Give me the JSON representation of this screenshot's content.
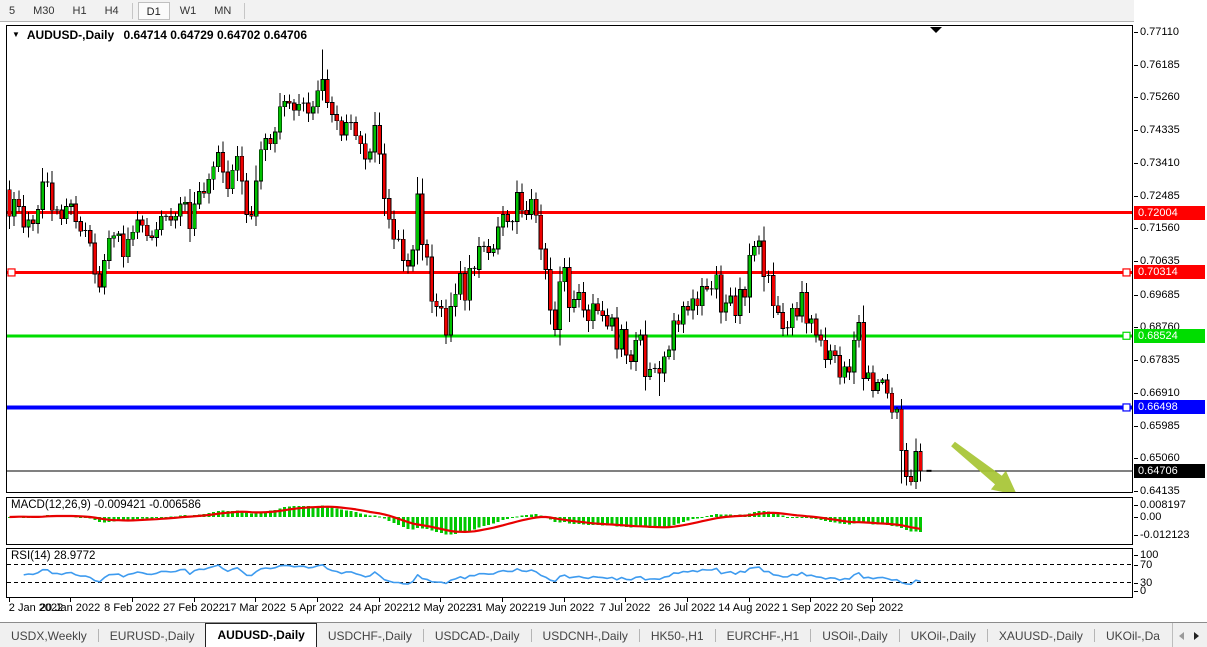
{
  "toolbar": {
    "items": [
      {
        "label": "5"
      },
      {
        "label": "M30"
      },
      {
        "label": "H1"
      },
      {
        "label": "H4"
      },
      {
        "sep": true
      },
      {
        "label": "D1",
        "active": true
      },
      {
        "label": "W1"
      },
      {
        "label": "MN"
      },
      {
        "sep": true
      }
    ]
  },
  "chart": {
    "title_symbol": "AUDUSD-,Daily",
    "title_ohlc": "0.64714 0.64729 0.64702 0.64706"
  },
  "price_axis": {
    "labels": [
      "0.77110",
      "0.76185",
      "0.75260",
      "0.74335",
      "0.73410",
      "0.72485",
      "0.71560",
      "0.70635",
      "0.69685",
      "0.68760",
      "0.67835",
      "0.66910",
      "0.65985",
      "0.65060",
      "0.64135"
    ]
  },
  "hlines": [
    {
      "price": 0.72004,
      "badge": "0.72004",
      "color": "#ff0000",
      "thickness": 3,
      "handles": []
    },
    {
      "price": 0.70314,
      "badge": "0.70314",
      "color": "#ff0000",
      "thickness": 3,
      "handles": [
        "left",
        "right"
      ]
    },
    {
      "price": 0.68524,
      "badge": "0.68524",
      "color": "#00dd00",
      "thickness": 3,
      "handles": [
        "right"
      ]
    },
    {
      "price": 0.66498,
      "badge": "0.66498",
      "color": "#0000ff",
      "thickness": 4,
      "handles": [
        "right"
      ]
    }
  ],
  "price_line": {
    "price": 0.64706,
    "badge": "0.64706",
    "color": "#000000"
  },
  "macd": {
    "label": "MACD(12,26,9) -0.009421 -0.006586",
    "params": [
      12,
      26,
      9
    ],
    "value_main": -0.009421,
    "value_signal": -0.006586,
    "axis_labels": [
      "0.008197",
      "0.00",
      "-0.012123"
    ],
    "axis_values": [
      0.008197,
      0,
      -0.012123
    ],
    "histogram_color": "#00c800",
    "signal_color": "#e80000"
  },
  "rsi": {
    "label": "RSI(14) 28.9772",
    "period": 14,
    "value": 28.9772,
    "axis_labels": [
      "100",
      "70",
      "30",
      "0"
    ],
    "axis_values": [
      100,
      70,
      30,
      0
    ],
    "levels": [
      70,
      30
    ],
    "line_color": "#3e9bef"
  },
  "x_axis": {
    "dates": [
      "2 Jan 2022",
      "20 Jan 2022",
      "8 Feb 2022",
      "27 Feb 2022",
      "17 Mar 2022",
      "5 Apr 2022",
      "24 Apr 2022",
      "12 May 2022",
      "31 May 2022",
      "19 Jun 2022",
      "7 Jul 2022",
      "26 Jul 2022",
      "14 Aug 2022",
      "1 Sep 2022",
      "20 Sep 2022"
    ]
  },
  "tabs": {
    "items": [
      "USDX,Weekly",
      "EURUSD-,Daily",
      "AUDUSD-,Daily",
      "USDCHF-,Daily",
      "USDCAD-,Daily",
      "USDCNH-,Daily",
      "HK50-,H1",
      "EURCHF-,H1",
      "USOil-,Daily",
      "UKOil-,Daily",
      "XAUUSD-,Daily",
      "UKOil-,Da"
    ],
    "active": "AUDUSD-,Daily"
  },
  "chart_data": {
    "type": "candlestick",
    "symbol": "AUDUSD-",
    "timeframe": "Daily",
    "current_bar": {
      "open": 0.64714,
      "high": 0.64729,
      "low": 0.64702,
      "close": 0.64706
    },
    "ylim": [
      0.64135,
      0.7711
    ],
    "first_open": 0.7265,
    "bull_color": "#00c000",
    "bear_color": "#ee0000",
    "outline_color": "#000000",
    "closes": [
      0.719,
      0.7238,
      0.7218,
      0.716,
      0.718,
      0.717,
      0.7209,
      0.7287,
      0.7284,
      0.7207,
      0.7208,
      0.7183,
      0.7218,
      0.7225,
      0.7175,
      0.7148,
      0.715,
      0.7115,
      0.7027,
      0.699,
      0.7065,
      0.7128,
      0.7135,
      0.714,
      0.7076,
      0.7125,
      0.7145,
      0.718,
      0.7165,
      0.7135,
      0.713,
      0.7152,
      0.719,
      0.719,
      0.718,
      0.719,
      0.7225,
      0.723,
      0.7155,
      0.7225,
      0.726,
      0.7255,
      0.7295,
      0.733,
      0.737,
      0.7315,
      0.7268,
      0.732,
      0.736,
      0.729,
      0.7195,
      0.719,
      0.729,
      0.7378,
      0.741,
      0.7395,
      0.7428,
      0.75,
      0.7515,
      0.751,
      0.749,
      0.7507,
      0.751,
      0.7482,
      0.75,
      0.7545,
      0.7577,
      0.7512,
      0.7478,
      0.746,
      0.742,
      0.7455,
      0.7455,
      0.7418,
      0.7395,
      0.7352,
      0.7372,
      0.7447,
      0.7366,
      0.724,
      0.7182,
      0.7125,
      0.7125,
      0.7065,
      0.705,
      0.7095,
      0.7253,
      0.711,
      0.7075,
      0.695,
      0.6935,
      0.693,
      0.6855,
      0.6935,
      0.697,
      0.7028,
      0.6953,
      0.7043,
      0.704,
      0.7105,
      0.7105,
      0.7088,
      0.7098,
      0.716,
      0.7195,
      0.7175,
      0.7175,
      0.7257,
      0.7207,
      0.7195,
      0.7238,
      0.7193,
      0.7098,
      0.704,
      0.6925,
      0.687,
      0.7005,
      0.7045,
      0.6932,
      0.6955,
      0.6975,
      0.6925,
      0.6895,
      0.6943,
      0.6923,
      0.691,
      0.688,
      0.6903,
      0.6815,
      0.687,
      0.6798,
      0.678,
      0.684,
      0.6855,
      0.6737,
      0.6757,
      0.676,
      0.6747,
      0.6793,
      0.6812,
      0.6895,
      0.6885,
      0.6935,
      0.6925,
      0.6957,
      0.6937,
      0.6992,
      0.6985,
      0.6985,
      0.7025,
      0.692,
      0.6945,
      0.6965,
      0.691,
      0.6983,
      0.6962,
      0.708,
      0.7105,
      0.712,
      0.702,
      0.7023,
      0.6937,
      0.6918,
      0.6873,
      0.6875,
      0.693,
      0.6908,
      0.6975,
      0.6888,
      0.69,
      0.6855,
      0.684,
      0.6785,
      0.681,
      0.6797,
      0.6735,
      0.6765,
      0.675,
      0.684,
      0.689,
      0.6732,
      0.6748,
      0.6698,
      0.672,
      0.6727,
      0.669,
      0.6636,
      0.6645,
      0.6528,
      0.6455,
      0.644,
      0.6525,
      0.64706
    ],
    "wick_overrides": {
      "8": {
        "h": 0.7314
      },
      "66": {
        "h": 0.7661
      },
      "92": {
        "l": 0.6829
      },
      "108": {
        "h": 0.7283
      },
      "137": {
        "l": 0.6682
      },
      "158": {
        "h": 0.7136
      },
      "188": {
        "l": 0.6435
      },
      "192": {
        "l": 0.644
      }
    },
    "annotation_arrow": {
      "direction": "down-right",
      "color": "#a6c433"
    }
  }
}
